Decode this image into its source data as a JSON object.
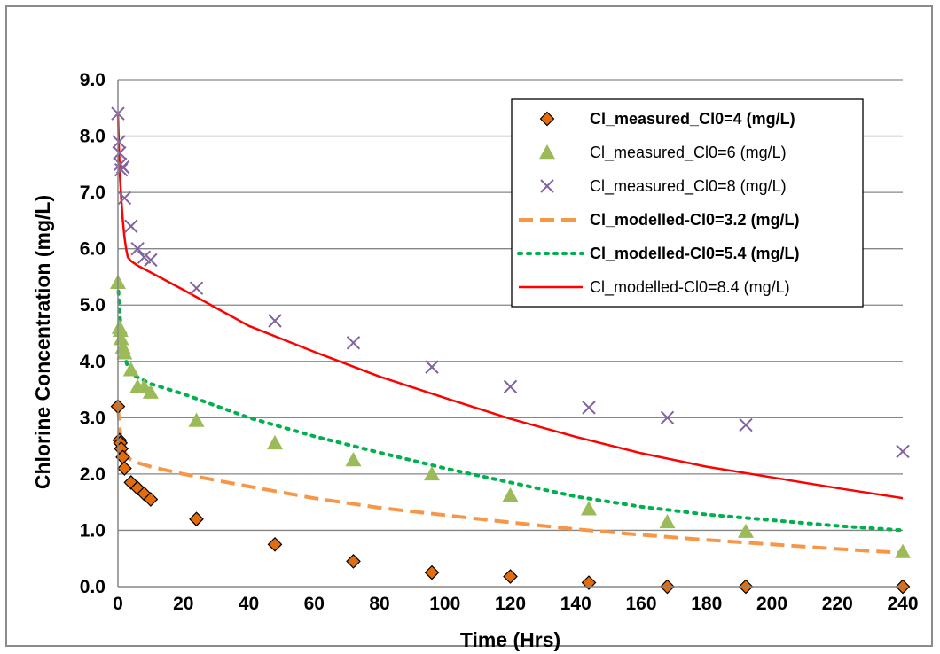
{
  "chart_data": {
    "type": "scatter",
    "xlabel": "Time (Hrs)",
    "ylabel": "Chlorine Concentration (mg/L)",
    "xlim": [
      0,
      240
    ],
    "ylim": [
      0,
      9
    ],
    "xticks": [
      0,
      20,
      40,
      60,
      80,
      100,
      120,
      140,
      160,
      180,
      200,
      220,
      240
    ],
    "yticks": [
      "0.0",
      "1.0",
      "2.0",
      "3.0",
      "4.0",
      "5.0",
      "6.0",
      "7.0",
      "8.0",
      "9.0"
    ],
    "grid": "horizontal",
    "legend_position": "top-right",
    "series": [
      {
        "name": "Cl_measured_Cl0=4 (mg/L)",
        "kind": "scatter",
        "marker": "diamond",
        "color": "#e46c0a",
        "stroke": "#000000",
        "bold": true,
        "x": [
          0,
          0.5,
          0.75,
          1,
          1.5,
          2,
          4,
          6,
          8,
          10,
          24,
          48,
          72,
          96,
          120,
          144,
          168,
          192,
          240
        ],
        "y": [
          3.2,
          2.6,
          2.55,
          2.45,
          2.3,
          2.1,
          1.85,
          1.75,
          1.65,
          1.55,
          1.2,
          0.75,
          0.45,
          0.25,
          0.18,
          0.07,
          0.0,
          0.0,
          0.0
        ]
      },
      {
        "name": "Cl_measured_Cl0=6 (mg/L)",
        "kind": "scatter",
        "marker": "triangle",
        "color": "#9bbb59",
        "bold": false,
        "x": [
          0,
          0.5,
          0.75,
          1,
          1.5,
          2,
          4,
          6,
          8,
          10,
          24,
          48,
          72,
          96,
          120,
          144,
          168,
          192,
          240
        ],
        "y": [
          5.4,
          4.6,
          4.55,
          4.4,
          4.25,
          4.15,
          3.85,
          3.55,
          3.55,
          3.45,
          2.95,
          2.55,
          2.25,
          2.0,
          1.62,
          1.38,
          1.15,
          0.98,
          0.62
        ]
      },
      {
        "name": "Cl_measured_Cl0=8 (mg/L)",
        "kind": "scatter",
        "marker": "x",
        "color": "#8064a2",
        "bold": false,
        "x": [
          0,
          0.3,
          0.5,
          0.75,
          1,
          1.5,
          2,
          4,
          6,
          8,
          10,
          24,
          48,
          72,
          96,
          120,
          144,
          168,
          192,
          240
        ],
        "y": [
          8.4,
          7.9,
          7.7,
          7.5,
          7.4,
          7.45,
          6.9,
          6.4,
          6.0,
          5.85,
          5.8,
          5.3,
          4.72,
          4.33,
          3.9,
          3.55,
          3.18,
          3.0,
          2.87,
          2.4
        ]
      },
      {
        "name": "Cl_modelled-Cl0=3.2 (mg/L)",
        "kind": "line",
        "dash": "dashed",
        "color": "#f79646",
        "bold": true,
        "x": [
          0,
          0.5,
          1,
          2,
          3,
          4,
          5,
          6,
          10,
          20,
          40,
          60,
          80,
          100,
          120,
          140,
          160,
          180,
          200,
          220,
          240
        ],
        "y": [
          3.2,
          2.85,
          2.6,
          2.4,
          2.3,
          2.25,
          2.22,
          2.2,
          2.13,
          2.0,
          1.78,
          1.57,
          1.4,
          1.27,
          1.14,
          1.02,
          0.92,
          0.83,
          0.75,
          0.67,
          0.6
        ]
      },
      {
        "name": "Cl_modelled-Cl0=5.4 (mg/L)",
        "kind": "line",
        "dash": "dotted",
        "color": "#00b050",
        "bold": true,
        "x": [
          0,
          0.5,
          1,
          2,
          3,
          4,
          5,
          6,
          10,
          20,
          40,
          60,
          80,
          100,
          120,
          140,
          160,
          180,
          200,
          220,
          240
        ],
        "y": [
          5.4,
          4.9,
          4.5,
          4.1,
          3.9,
          3.8,
          3.75,
          3.72,
          3.6,
          3.42,
          3.0,
          2.67,
          2.38,
          2.1,
          1.85,
          1.6,
          1.42,
          1.28,
          1.18,
          1.08,
          1.0
        ]
      },
      {
        "name": "Cl_modelled-Cl0=8.4 (mg/L)",
        "kind": "line",
        "dash": "solid",
        "color": "#ff0000",
        "bold": false,
        "x": [
          0,
          0.3,
          0.6,
          1,
          1.5,
          2,
          2.5,
          3,
          4,
          6,
          10,
          20,
          40,
          60,
          80,
          100,
          120,
          140,
          160,
          180,
          200,
          220,
          240
        ],
        "y": [
          8.4,
          7.8,
          7.3,
          6.9,
          6.5,
          6.2,
          6.0,
          5.85,
          5.78,
          5.7,
          5.58,
          5.27,
          4.63,
          4.17,
          3.73,
          3.35,
          2.98,
          2.66,
          2.37,
          2.13,
          1.94,
          1.75,
          1.57
        ]
      }
    ]
  }
}
